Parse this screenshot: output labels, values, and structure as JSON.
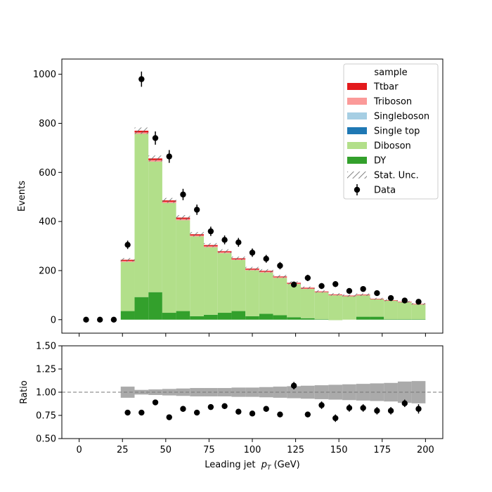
{
  "chart_data": [
    {
      "type": "bar",
      "subtype": "stacked-histogram",
      "title": "",
      "xlabel": "",
      "ylabel": "Events",
      "xlim": [
        -10,
        210
      ],
      "ylim": [
        -55,
        1062
      ],
      "xticks": [
        0,
        25,
        50,
        75,
        100,
        125,
        150,
        175,
        200
      ],
      "yticks": [
        0,
        200,
        400,
        600,
        800,
        1000
      ],
      "bins": [
        [
          24,
          32
        ],
        [
          32,
          40
        ],
        [
          40,
          48
        ],
        [
          48,
          56
        ],
        [
          56,
          64
        ],
        [
          64,
          72
        ],
        [
          72,
          80
        ],
        [
          80,
          88
        ],
        [
          88,
          96
        ],
        [
          96,
          104
        ],
        [
          104,
          112
        ],
        [
          112,
          120
        ],
        [
          120,
          128
        ],
        [
          128,
          136
        ],
        [
          136,
          144
        ],
        [
          144,
          152
        ],
        [
          152,
          160
        ],
        [
          160,
          168
        ],
        [
          168,
          176
        ],
        [
          176,
          184
        ],
        [
          184,
          192
        ],
        [
          192,
          200
        ]
      ],
      "series": [
        {
          "name": "DY",
          "color": "#33a02c",
          "values": [
            35,
            92,
            112,
            28,
            35,
            14,
            20,
            28,
            35,
            14,
            24,
            18,
            10,
            6,
            2,
            -2,
            0,
            12,
            12,
            2,
            2,
            2
          ]
        },
        {
          "name": "Diboson",
          "color": "#b2df8a",
          "values": [
            200,
            665,
            532,
            447,
            370,
            325,
            275,
            243,
            208,
            187,
            168,
            152,
            135,
            119,
            109,
            101,
            95,
            87,
            71,
            75,
            69,
            60
          ]
        },
        {
          "name": "Single top",
          "color": "#1f78b4",
          "values": [
            0,
            0,
            0,
            0,
            0,
            0,
            0,
            0,
            0,
            0,
            0,
            0,
            0,
            0,
            0,
            0,
            0,
            0,
            0,
            0,
            0,
            0
          ]
        },
        {
          "name": "Singleboson",
          "color": "#a6cee3",
          "values": [
            0,
            0,
            0,
            0,
            0,
            0,
            0,
            0,
            0,
            0,
            0,
            0,
            0,
            0,
            0,
            0,
            0,
            0,
            0,
            0,
            0,
            0
          ]
        },
        {
          "name": "Triboson",
          "color": "#fb9a99",
          "values": [
            4,
            6,
            6,
            5,
            5,
            4,
            4,
            4,
            3,
            3,
            3,
            3,
            2,
            2,
            2,
            2,
            1,
            1,
            1,
            1,
            1,
            1
          ]
        },
        {
          "name": "Ttbar",
          "color": "#e31a1c",
          "values": [
            5,
            7,
            7,
            6,
            6,
            5,
            5,
            4,
            4,
            4,
            4,
            3,
            3,
            3,
            2,
            2,
            2,
            2,
            1,
            1,
            1,
            1
          ]
        }
      ],
      "stat_unc": [
        7,
        13,
        12,
        10,
        10,
        9,
        8,
        8,
        7,
        7,
        7,
        6,
        6,
        5,
        5,
        5,
        5,
        5,
        4,
        4,
        4,
        4
      ],
      "data_points": {
        "name": "Data",
        "x": [
          4,
          12,
          20,
          28,
          36,
          44,
          52,
          60,
          68,
          76,
          84,
          92,
          100,
          108,
          116,
          124,
          132,
          140,
          148,
          156,
          164,
          172,
          180,
          188,
          196
        ],
        "y": [
          0,
          0,
          0,
          305,
          980,
          740,
          665,
          510,
          448,
          360,
          325,
          315,
          273,
          248,
          220,
          143,
          170,
          137,
          145,
          117,
          125,
          108,
          88,
          78,
          73
        ],
        "err": [
          0,
          0,
          0,
          17,
          31,
          27,
          26,
          23,
          21,
          19,
          18,
          18,
          17,
          16,
          15,
          12,
          13,
          12,
          12,
          11,
          11,
          10,
          9,
          9,
          9
        ]
      },
      "legend": {
        "title": "sample",
        "position": "top-right",
        "entries": [
          "Ttbar",
          "Triboson",
          "Singleboson",
          "Single top",
          "Diboson",
          "DY",
          "Stat. Unc.",
          "Data"
        ]
      },
      "grid": false
    },
    {
      "type": "scatter",
      "subtype": "ratio",
      "xlabel": "Leading jet  p_T (GeV)",
      "xlabel_main": "Leading jet  ",
      "xlabel_symbol": "p",
      "xlabel_sub": "T",
      "xlabel_unit": " (GeV)",
      "ylabel": "Ratio",
      "xlim": [
        -10,
        210
      ],
      "ylim": [
        0.5,
        1.5
      ],
      "xticks": [
        0,
        25,
        50,
        75,
        100,
        125,
        150,
        175,
        200
      ],
      "yticks": [
        "0.50",
        "0.75",
        "1.00",
        "1.25",
        "1.50"
      ],
      "reference_line": 1.0,
      "unc_band": {
        "bins": [
          [
            24,
            32
          ],
          [
            32,
            40
          ],
          [
            40,
            48
          ],
          [
            48,
            56
          ],
          [
            56,
            64
          ],
          [
            64,
            72
          ],
          [
            72,
            80
          ],
          [
            80,
            88
          ],
          [
            88,
            96
          ],
          [
            96,
            104
          ],
          [
            104,
            112
          ],
          [
            112,
            120
          ],
          [
            120,
            128
          ],
          [
            128,
            136
          ],
          [
            136,
            144
          ],
          [
            144,
            152
          ],
          [
            152,
            160
          ],
          [
            160,
            168
          ],
          [
            168,
            176
          ],
          [
            176,
            184
          ],
          [
            184,
            192
          ],
          [
            192,
            200
          ]
        ],
        "halfwidth": [
          0.06,
          0.025,
          0.03,
          0.035,
          0.04,
          0.045,
          0.045,
          0.045,
          0.05,
          0.05,
          0.055,
          0.06,
          0.065,
          0.07,
          0.075,
          0.08,
          0.085,
          0.09,
          0.095,
          0.1,
          0.115,
          0.12
        ]
      },
      "points": {
        "x": [
          28,
          36,
          44,
          52,
          60,
          68,
          76,
          84,
          92,
          100,
          108,
          116,
          124,
          132,
          140,
          148,
          156,
          164,
          172,
          180,
          188,
          196
        ],
        "y": [
          0.78,
          0.78,
          0.89,
          0.73,
          0.82,
          0.78,
          0.84,
          0.85,
          0.79,
          0.77,
          0.82,
          0.76,
          1.07,
          0.76,
          0.86,
          0.72,
          0.83,
          0.83,
          0.8,
          0.8,
          0.88,
          0.82
        ],
        "err": [
          0.03,
          0.02,
          0.03,
          0.03,
          0.03,
          0.03,
          0.03,
          0.03,
          0.03,
          0.03,
          0.03,
          0.03,
          0.04,
          0.03,
          0.04,
          0.04,
          0.04,
          0.04,
          0.04,
          0.04,
          0.04,
          0.05
        ]
      }
    }
  ]
}
